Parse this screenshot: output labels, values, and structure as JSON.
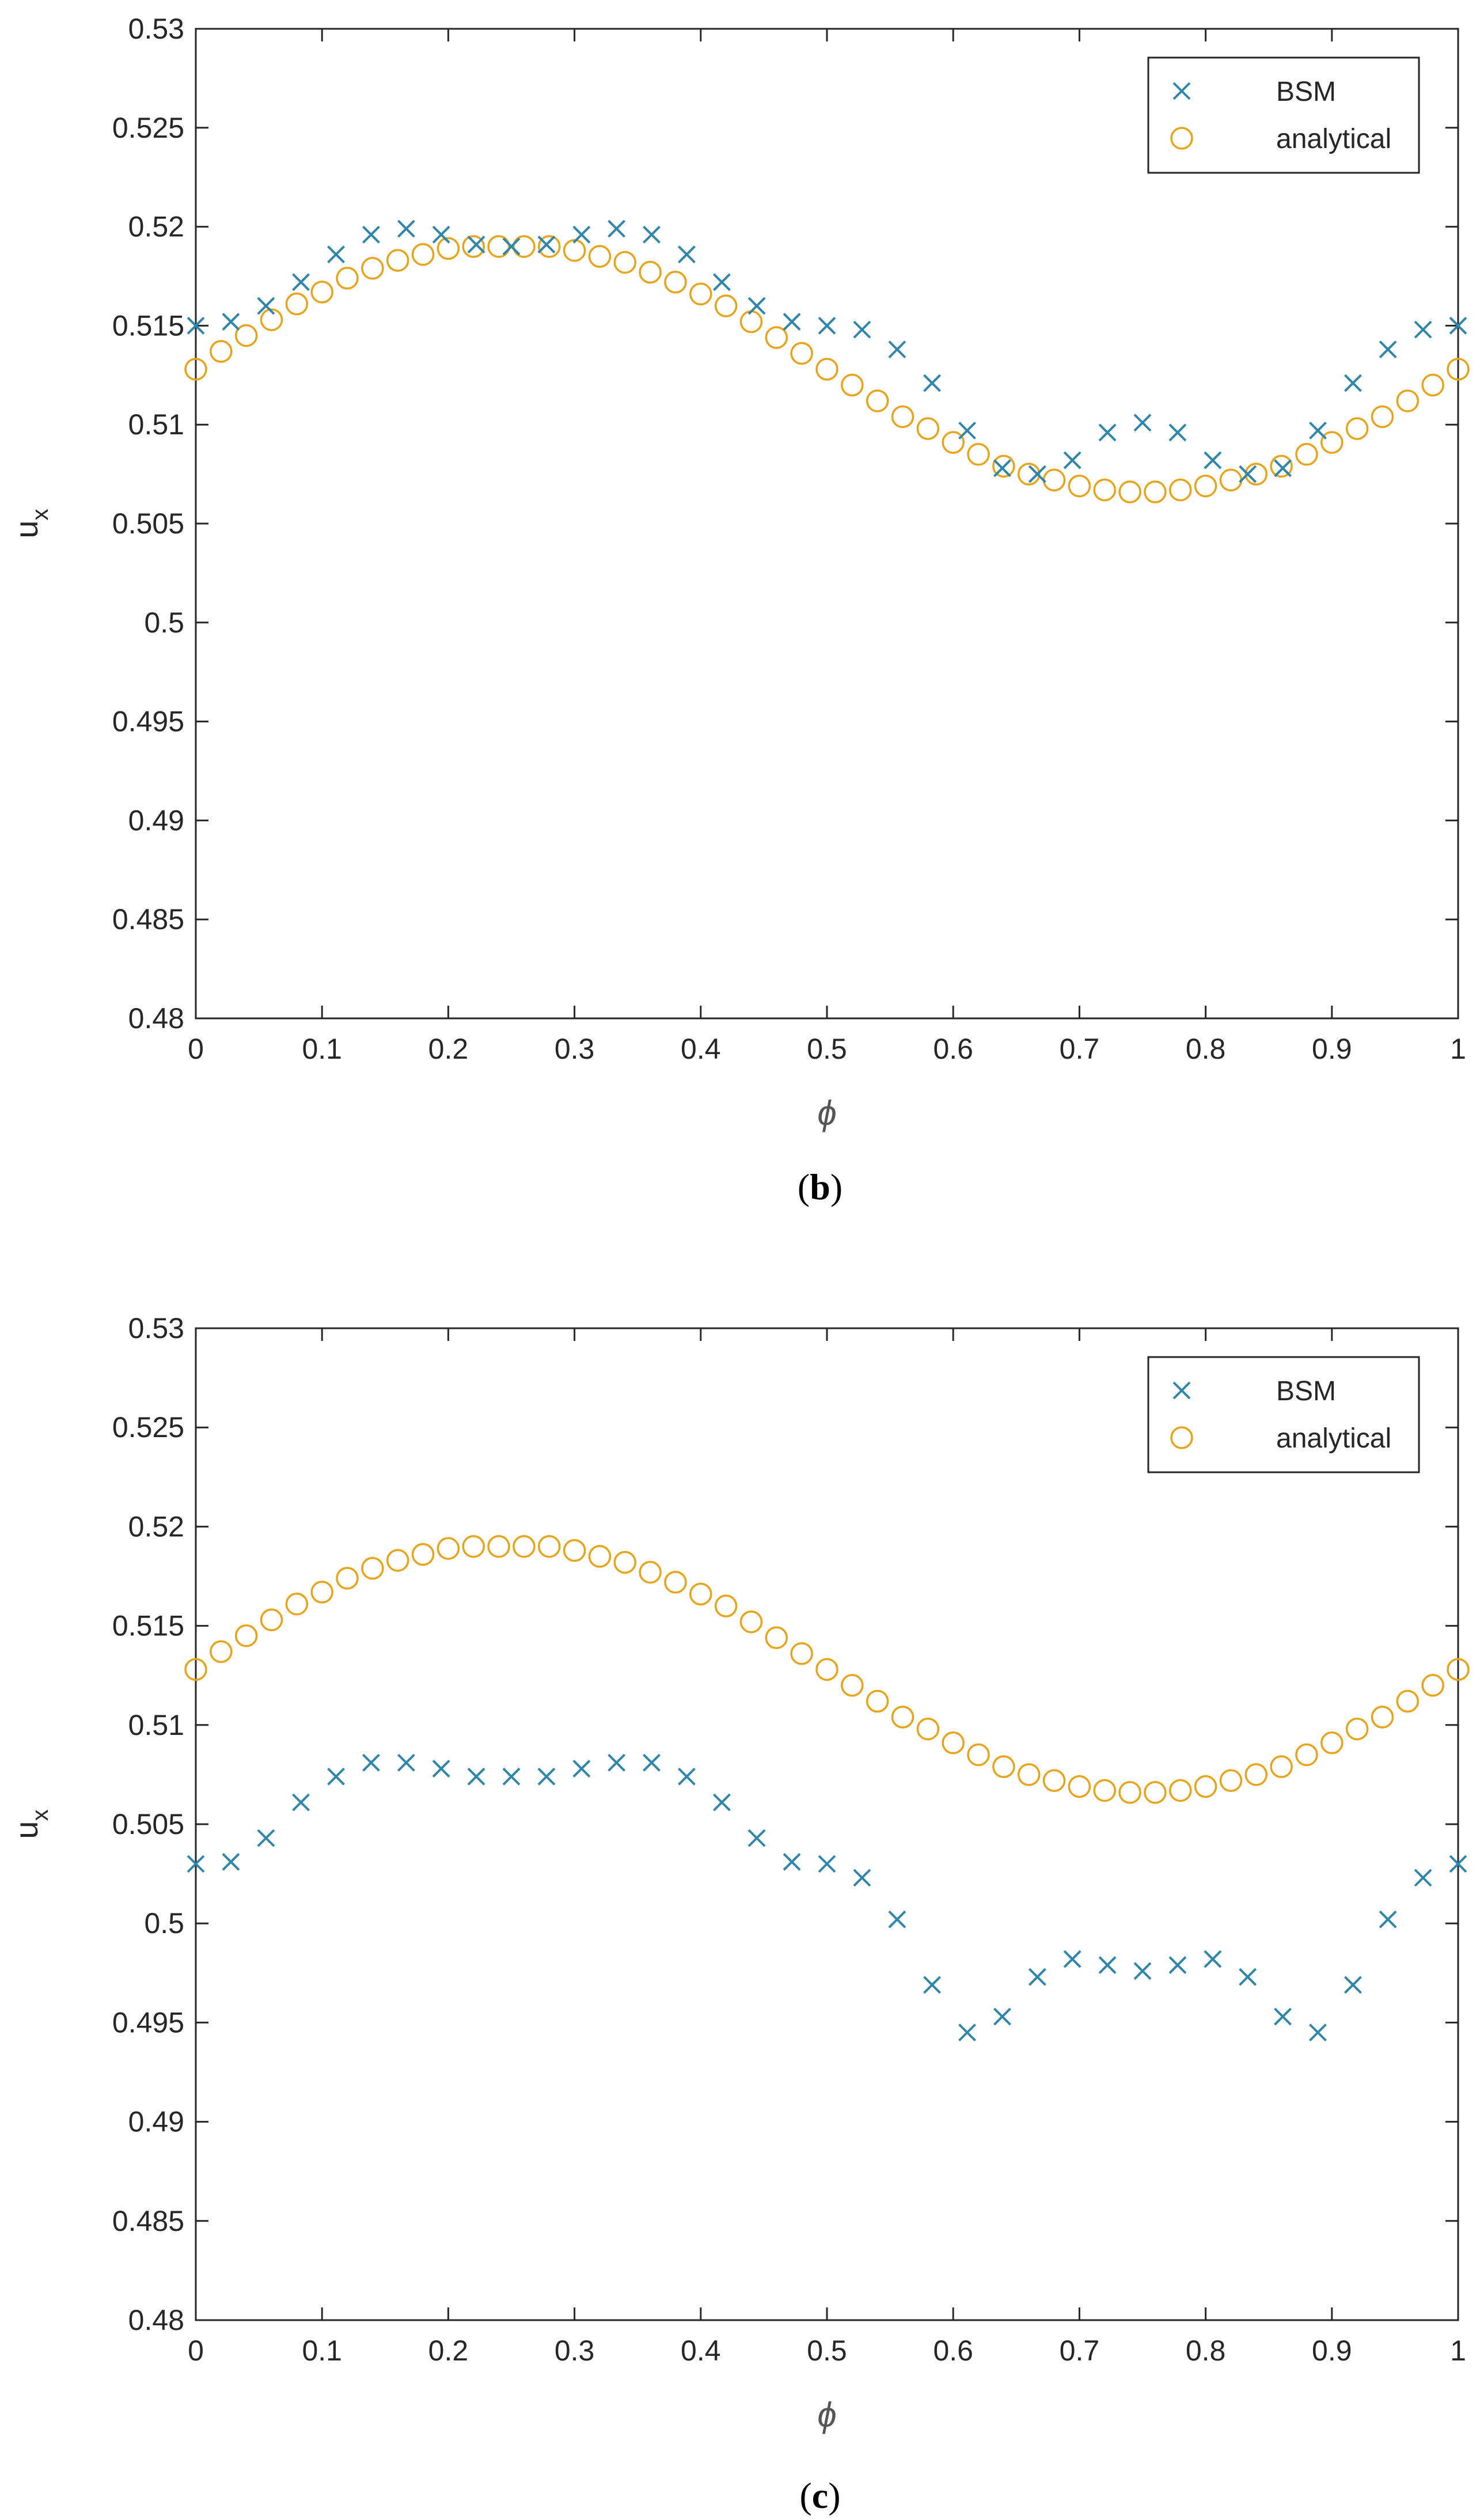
{
  "figure": {
    "panels": [
      {
        "id": "b",
        "caption_open": "(",
        "caption_letter": "b",
        "caption_close": ")"
      },
      {
        "id": "c",
        "caption_open": "(",
        "caption_letter": "c",
        "caption_close": ")"
      }
    ]
  },
  "colors": {
    "bsm": "#2e86ab",
    "analytical": "#e8a317",
    "axis": "#262626",
    "background": "#ffffff"
  },
  "chart_data": [
    {
      "type": "scatter",
      "panel": "b",
      "title": "",
      "xlabel": "ϕ",
      "ylabel_main": "u",
      "ylabel_sub": "x",
      "xlim": [
        0,
        1
      ],
      "ylim": [
        0.48,
        0.53
      ],
      "xticks": [
        0,
        0.1,
        0.2,
        0.3,
        0.4,
        0.5,
        0.6,
        0.7,
        0.8,
        0.9,
        1
      ],
      "xtick_labels": [
        "0",
        "0.1",
        "0.2",
        "0.3",
        "0.4",
        "0.5",
        "0.6",
        "0.7",
        "0.8",
        "0.9",
        "1"
      ],
      "yticks": [
        0.48,
        0.485,
        0.49,
        0.495,
        0.5,
        0.505,
        0.51,
        0.515,
        0.52,
        0.525,
        0.53
      ],
      "ytick_labels": [
        "0.48",
        "0.485",
        "0.49",
        "0.495",
        "0.5",
        "0.505",
        "0.51",
        "0.515",
        "0.52",
        "0.525",
        "0.53"
      ],
      "legend": "top-right",
      "series": [
        {
          "name": "BSM",
          "marker": "x",
          "x": [
            0,
            0.0278,
            0.0556,
            0.0833,
            0.1111,
            0.1389,
            0.1667,
            0.1944,
            0.2222,
            0.25,
            0.2778,
            0.3056,
            0.3333,
            0.3611,
            0.3889,
            0.4167,
            0.4444,
            0.4722,
            0.5,
            0.5278,
            0.5556,
            0.5833,
            0.6111,
            0.6389,
            0.6667,
            0.6944,
            0.7222,
            0.75,
            0.7778,
            0.8056,
            0.8333,
            0.8611,
            0.8889,
            0.9167,
            0.9444,
            0.9722,
            1.0
          ],
          "y": [
            0.515,
            0.5152,
            0.516,
            0.5172,
            0.5186,
            0.5196,
            0.5199,
            0.5196,
            0.5191,
            0.519,
            0.5191,
            0.5196,
            0.5199,
            0.5196,
            0.5186,
            0.5172,
            0.516,
            0.5152,
            0.515,
            0.5148,
            0.5138,
            0.5121,
            0.5097,
            0.5078,
            0.5075,
            0.5082,
            0.5096,
            0.5101,
            0.5096,
            0.5082,
            0.5075,
            0.5078,
            0.5097,
            0.5121,
            0.5138,
            0.5148,
            0.515
          ]
        },
        {
          "name": "analytical",
          "marker": "o",
          "x": [
            0,
            0.02,
            0.04,
            0.06,
            0.08,
            0.1,
            0.12,
            0.14,
            0.16,
            0.18,
            0.2,
            0.22,
            0.24,
            0.26,
            0.28,
            0.3,
            0.32,
            0.34,
            0.36,
            0.38,
            0.4,
            0.42,
            0.44,
            0.46,
            0.48,
            0.5,
            0.52,
            0.54,
            0.56,
            0.58,
            0.6,
            0.62,
            0.64,
            0.66,
            0.68,
            0.7,
            0.72,
            0.74,
            0.76,
            0.78,
            0.8,
            0.82,
            0.84,
            0.86,
            0.88,
            0.9,
            0.92,
            0.94,
            0.96,
            0.98,
            1.0
          ],
          "y": [
            0.5128,
            0.5137,
            0.5145,
            0.5153,
            0.5161,
            0.5167,
            0.5174,
            0.5179,
            0.5183,
            0.5186,
            0.5189,
            0.519,
            0.519,
            0.519,
            0.519,
            0.5188,
            0.5185,
            0.5182,
            0.5177,
            0.5172,
            0.5166,
            0.516,
            0.5152,
            0.5144,
            0.5136,
            0.5128,
            0.512,
            0.5112,
            0.5104,
            0.5098,
            0.5091,
            0.5085,
            0.5079,
            0.5075,
            0.5072,
            0.5069,
            0.5067,
            0.5066,
            0.5066,
            0.5067,
            0.5069,
            0.5072,
            0.5075,
            0.5079,
            0.5085,
            0.5091,
            0.5098,
            0.5104,
            0.5112,
            0.512,
            0.5128
          ]
        }
      ]
    },
    {
      "type": "scatter",
      "panel": "c",
      "title": "",
      "xlabel": "ϕ",
      "ylabel_main": "u",
      "ylabel_sub": "x",
      "xlim": [
        0,
        1
      ],
      "ylim": [
        0.48,
        0.53
      ],
      "xticks": [
        0,
        0.1,
        0.2,
        0.3,
        0.4,
        0.5,
        0.6,
        0.7,
        0.8,
        0.9,
        1
      ],
      "xtick_labels": [
        "0",
        "0.1",
        "0.2",
        "0.3",
        "0.4",
        "0.5",
        "0.6",
        "0.7",
        "0.8",
        "0.9",
        "1"
      ],
      "yticks": [
        0.48,
        0.485,
        0.49,
        0.495,
        0.5,
        0.505,
        0.51,
        0.515,
        0.52,
        0.525,
        0.53
      ],
      "ytick_labels": [
        "0.48",
        "0.485",
        "0.49",
        "0.495",
        "0.5",
        "0.505",
        "0.51",
        "0.515",
        "0.52",
        "0.525",
        "0.53"
      ],
      "legend": "top-right",
      "series": [
        {
          "name": "BSM",
          "marker": "x",
          "x": [
            0,
            0.0278,
            0.0556,
            0.0833,
            0.1111,
            0.1389,
            0.1667,
            0.1944,
            0.2222,
            0.25,
            0.2778,
            0.3056,
            0.3333,
            0.3611,
            0.3889,
            0.4167,
            0.4444,
            0.4722,
            0.5,
            0.5278,
            0.5556,
            0.5833,
            0.6111,
            0.6389,
            0.6667,
            0.6944,
            0.7222,
            0.75,
            0.7778,
            0.8056,
            0.8333,
            0.8611,
            0.8889,
            0.9167,
            0.9444,
            0.9722,
            1.0
          ],
          "y": [
            0.503,
            0.5031,
            0.5043,
            0.5061,
            0.5074,
            0.5081,
            0.5081,
            0.5078,
            0.5074,
            0.5074,
            0.5074,
            0.5078,
            0.5081,
            0.5081,
            0.5074,
            0.5061,
            0.5043,
            0.5031,
            0.503,
            0.5023,
            0.5002,
            0.4969,
            0.4945,
            0.4953,
            0.4973,
            0.4982,
            0.4979,
            0.4976,
            0.4979,
            0.4982,
            0.4973,
            0.4953,
            0.4945,
            0.4969,
            0.5002,
            0.5023,
            0.503
          ]
        },
        {
          "name": "analytical",
          "marker": "o",
          "x": [
            0,
            0.02,
            0.04,
            0.06,
            0.08,
            0.1,
            0.12,
            0.14,
            0.16,
            0.18,
            0.2,
            0.22,
            0.24,
            0.26,
            0.28,
            0.3,
            0.32,
            0.34,
            0.36,
            0.38,
            0.4,
            0.42,
            0.44,
            0.46,
            0.48,
            0.5,
            0.52,
            0.54,
            0.56,
            0.58,
            0.6,
            0.62,
            0.64,
            0.66,
            0.68,
            0.7,
            0.72,
            0.74,
            0.76,
            0.78,
            0.8,
            0.82,
            0.84,
            0.86,
            0.88,
            0.9,
            0.92,
            0.94,
            0.96,
            0.98,
            1.0
          ],
          "y": [
            0.5128,
            0.5137,
            0.5145,
            0.5153,
            0.5161,
            0.5167,
            0.5174,
            0.5179,
            0.5183,
            0.5186,
            0.5189,
            0.519,
            0.519,
            0.519,
            0.519,
            0.5188,
            0.5185,
            0.5182,
            0.5177,
            0.5172,
            0.5166,
            0.516,
            0.5152,
            0.5144,
            0.5136,
            0.5128,
            0.512,
            0.5112,
            0.5104,
            0.5098,
            0.5091,
            0.5085,
            0.5079,
            0.5075,
            0.5072,
            0.5069,
            0.5067,
            0.5066,
            0.5066,
            0.5067,
            0.5069,
            0.5072,
            0.5075,
            0.5079,
            0.5085,
            0.5091,
            0.5098,
            0.5104,
            0.5112,
            0.512,
            0.5128
          ]
        }
      ]
    }
  ]
}
